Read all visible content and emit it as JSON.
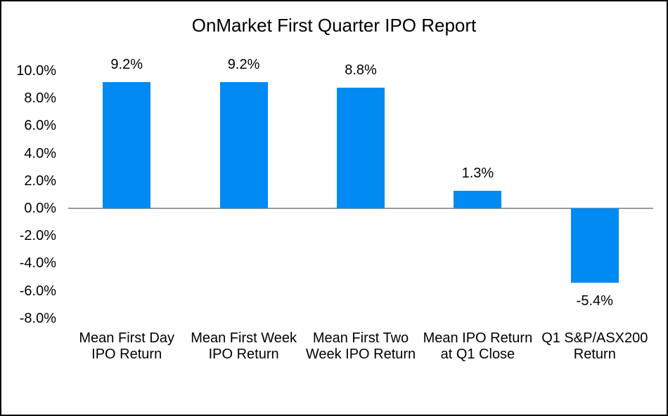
{
  "frame": {
    "background": "#ffffff",
    "border_color": "#000000"
  },
  "chart_data": {
    "type": "bar",
    "title": "OnMarket First Quarter IPO Report",
    "categories": [
      "Mean First Day IPO Return",
      "Mean First Week IPO Return",
      "Mean First Two Week IPO Return",
      "Mean IPO Return at Q1 Close",
      "Q1 S&P/ASX200 Return"
    ],
    "category_lines": [
      [
        "Mean First Day",
        "IPO Return"
      ],
      [
        "Mean First Week",
        "IPO Return"
      ],
      [
        "Mean First Two",
        "Week IPO Return"
      ],
      [
        "Mean IPO Return",
        "at Q1 Close"
      ],
      [
        "Q1 S&P/ASX200",
        "Return"
      ]
    ],
    "values": [
      9.2,
      9.2,
      8.8,
      1.3,
      -5.4
    ],
    "value_labels": [
      "9.2%",
      "9.2%",
      "8.8%",
      "1.3%",
      "-5.4%"
    ],
    "xlabel": "",
    "ylabel": "",
    "ylim": [
      -8,
      10
    ],
    "ytick_step": 2,
    "yticks": [
      {
        "value": 10,
        "label": "10.0%"
      },
      {
        "value": 8,
        "label": "8.0%"
      },
      {
        "value": 6,
        "label": "6.0%"
      },
      {
        "value": 4,
        "label": "4.0%"
      },
      {
        "value": 2,
        "label": "2.0%"
      },
      {
        "value": 0,
        "label": "0.0%"
      },
      {
        "value": -2,
        "label": "-2.0%"
      },
      {
        "value": -4,
        "label": "-4.0%"
      },
      {
        "value": -6,
        "label": "-6.0%"
      },
      {
        "value": -8,
        "label": "-8.0%"
      }
    ],
    "bar_color": "#008AF2",
    "zero_line_color": "#9B9B9B",
    "text_color": "#000000",
    "grid": "zero-line-only",
    "legend_position": "none"
  }
}
